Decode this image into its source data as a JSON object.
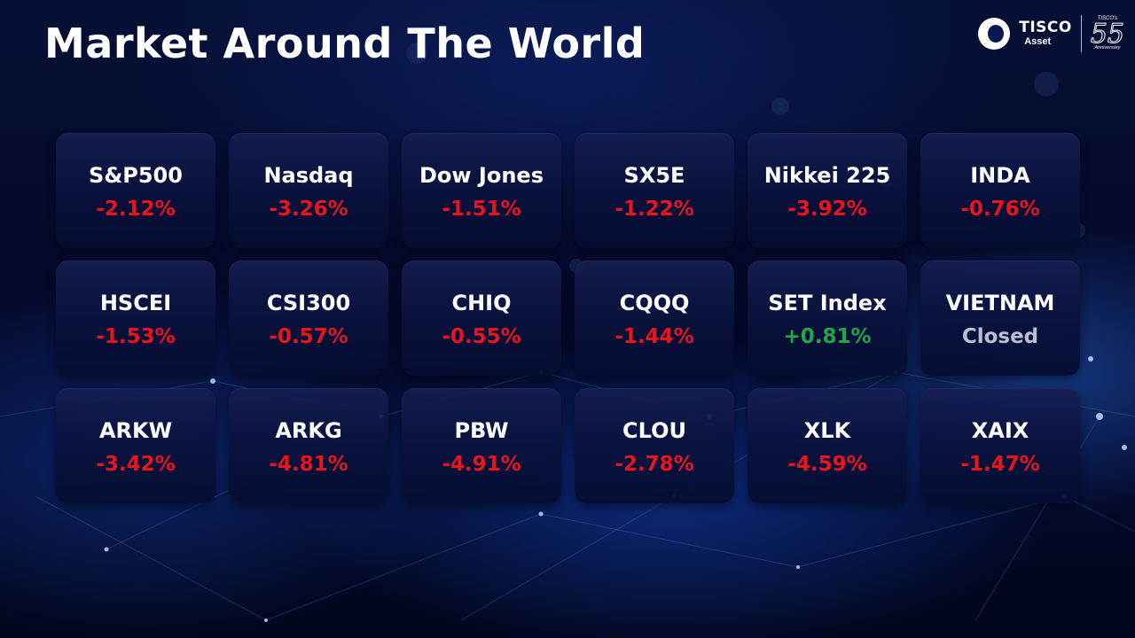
{
  "title": "Market Around The World",
  "logo": {
    "name": "TISCO",
    "sub": "Asset",
    "anniversary_top": "TISCO's",
    "anniversary_number": "55",
    "anniversary_bottom": "Anniversary"
  },
  "colors": {
    "negative": "#e8151b",
    "positive": "#1fa84a",
    "closed": "#b8bfd0",
    "title": "#ffffff"
  },
  "markets": [
    {
      "name": "S&P500",
      "change": "-2.12%",
      "status": "negative"
    },
    {
      "name": "Nasdaq",
      "change": "-3.26%",
      "status": "negative"
    },
    {
      "name": "Dow Jones",
      "change": "-1.51%",
      "status": "negative"
    },
    {
      "name": "SX5E",
      "change": "-1.22%",
      "status": "negative"
    },
    {
      "name": "Nikkei 225",
      "change": "-3.92%",
      "status": "negative"
    },
    {
      "name": "INDA",
      "change": "-0.76%",
      "status": "negative"
    },
    {
      "name": "HSCEI",
      "change": "-1.53%",
      "status": "negative"
    },
    {
      "name": "CSI300",
      "change": "-0.57%",
      "status": "negative"
    },
    {
      "name": "CHIQ",
      "change": "-0.55%",
      "status": "negative"
    },
    {
      "name": "CQQQ",
      "change": "-1.44%",
      "status": "negative"
    },
    {
      "name": "SET Index",
      "change": "+0.81%",
      "status": "positive"
    },
    {
      "name": "VIETNAM",
      "change": "Closed",
      "status": "closed"
    },
    {
      "name": "ARKW",
      "change": "-3.42%",
      "status": "negative"
    },
    {
      "name": "ARKG",
      "change": "-4.81%",
      "status": "negative"
    },
    {
      "name": "PBW",
      "change": "-4.91%",
      "status": "negative"
    },
    {
      "name": "CLOU",
      "change": "-2.78%",
      "status": "negative"
    },
    {
      "name": "XLK",
      "change": "-4.59%",
      "status": "negative"
    },
    {
      "name": "XAIX",
      "change": "-1.47%",
      "status": "negative"
    }
  ]
}
